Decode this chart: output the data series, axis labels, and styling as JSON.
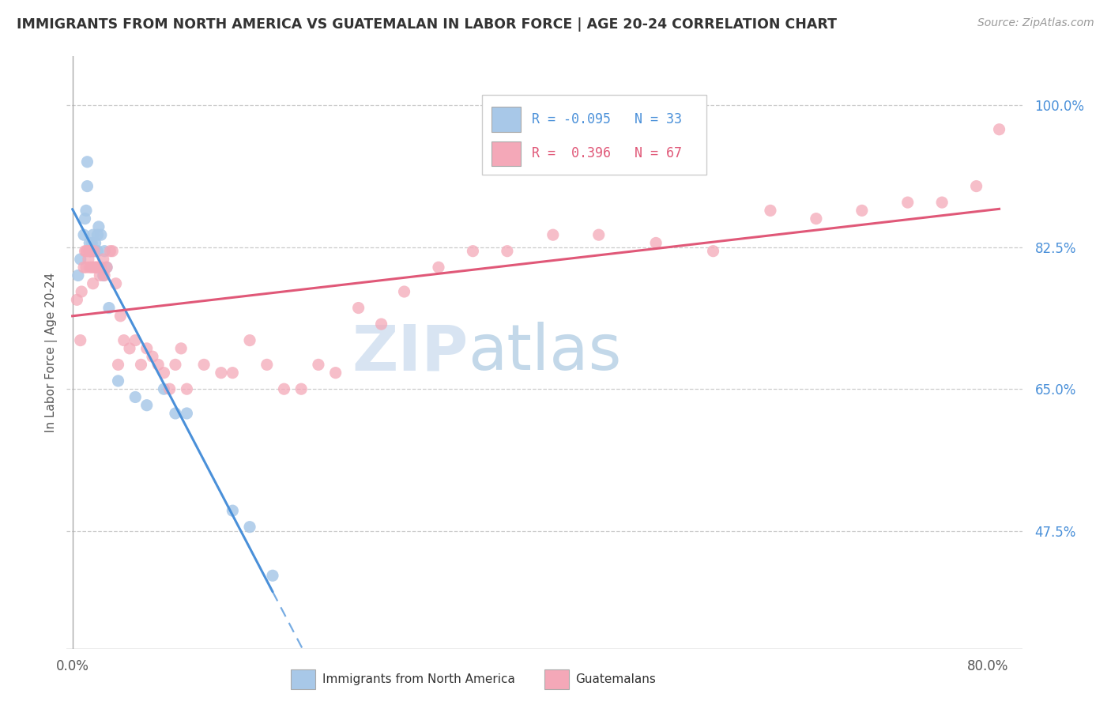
{
  "title": "IMMIGRANTS FROM NORTH AMERICA VS GUATEMALAN IN LABOR FORCE | AGE 20-24 CORRELATION CHART",
  "source": "Source: ZipAtlas.com",
  "ylabel": "In Labor Force | Age 20-24",
  "yticks": [
    0.475,
    0.65,
    0.825,
    1.0
  ],
  "ytick_labels": [
    "47.5%",
    "65.0%",
    "82.5%",
    "100.0%"
  ],
  "xlim": [
    -0.005,
    0.83
  ],
  "ylim": [
    0.33,
    1.06
  ],
  "blue_R": "-0.095",
  "blue_N": "33",
  "pink_R": "0.396",
  "pink_N": "67",
  "blue_color": "#a8c8e8",
  "pink_color": "#f4a8b8",
  "blue_line_color": "#4a90d9",
  "pink_line_color": "#e05878",
  "watermark_zip": "ZIP",
  "watermark_atlas": "atlas",
  "blue_points_x": [
    0.005,
    0.007,
    0.01,
    0.011,
    0.012,
    0.013,
    0.013,
    0.015,
    0.015,
    0.016,
    0.017,
    0.018,
    0.018,
    0.019,
    0.02,
    0.021,
    0.022,
    0.022,
    0.023,
    0.025,
    0.027,
    0.028,
    0.03,
    0.032,
    0.04,
    0.055,
    0.065,
    0.08,
    0.09,
    0.1,
    0.14,
    0.155,
    0.175
  ],
  "blue_points_y": [
    0.79,
    0.81,
    0.84,
    0.86,
    0.87,
    0.9,
    0.93,
    0.82,
    0.83,
    0.82,
    0.83,
    0.82,
    0.84,
    0.82,
    0.83,
    0.82,
    0.82,
    0.84,
    0.85,
    0.84,
    0.79,
    0.82,
    0.8,
    0.75,
    0.66,
    0.64,
    0.63,
    0.65,
    0.62,
    0.62,
    0.5,
    0.48,
    0.42
  ],
  "pink_points_x": [
    0.004,
    0.007,
    0.008,
    0.01,
    0.011,
    0.012,
    0.012,
    0.013,
    0.014,
    0.015,
    0.015,
    0.016,
    0.017,
    0.018,
    0.019,
    0.019,
    0.02,
    0.021,
    0.022,
    0.024,
    0.025,
    0.027,
    0.028,
    0.03,
    0.033,
    0.035,
    0.038,
    0.04,
    0.042,
    0.045,
    0.05,
    0.055,
    0.06,
    0.065,
    0.07,
    0.075,
    0.08,
    0.085,
    0.09,
    0.095,
    0.1,
    0.115,
    0.13,
    0.14,
    0.155,
    0.17,
    0.185,
    0.2,
    0.215,
    0.23,
    0.25,
    0.27,
    0.29,
    0.32,
    0.35,
    0.38,
    0.42,
    0.46,
    0.51,
    0.56,
    0.61,
    0.65,
    0.69,
    0.73,
    0.76,
    0.79,
    0.81
  ],
  "pink_points_y": [
    0.76,
    0.71,
    0.77,
    0.8,
    0.82,
    0.8,
    0.82,
    0.82,
    0.81,
    0.8,
    0.82,
    0.82,
    0.8,
    0.78,
    0.8,
    0.82,
    0.8,
    0.8,
    0.8,
    0.79,
    0.8,
    0.81,
    0.79,
    0.8,
    0.82,
    0.82,
    0.78,
    0.68,
    0.74,
    0.71,
    0.7,
    0.71,
    0.68,
    0.7,
    0.69,
    0.68,
    0.67,
    0.65,
    0.68,
    0.7,
    0.65,
    0.68,
    0.67,
    0.67,
    0.71,
    0.68,
    0.65,
    0.65,
    0.68,
    0.67,
    0.75,
    0.73,
    0.77,
    0.8,
    0.82,
    0.82,
    0.84,
    0.84,
    0.83,
    0.82,
    0.87,
    0.86,
    0.87,
    0.88,
    0.88,
    0.9,
    0.97
  ],
  "blue_line_x_start": 0.0,
  "blue_line_x_solid_end": 0.175,
  "blue_line_x_dash_end": 0.62,
  "pink_line_x_start": 0.0,
  "pink_line_x_end": 0.81
}
